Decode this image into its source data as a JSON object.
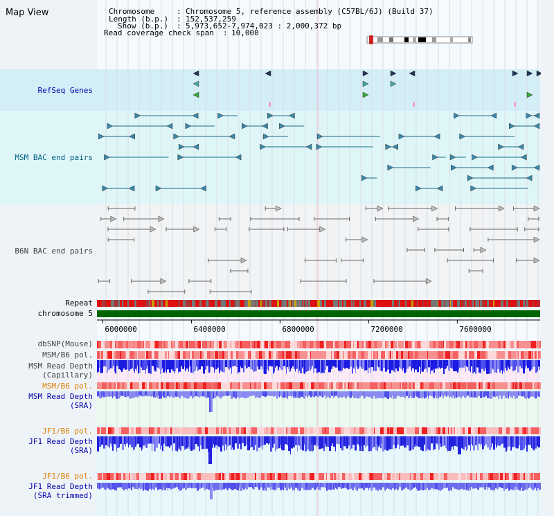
{
  "title": "Map View",
  "info": {
    "chromosome_key": "Chromosome",
    "chromosome_val": "Chromosome 5, reference assembly (C57BL/6J) (Build 37)",
    "length_key": "Length (b.p.)",
    "length_val": "152,537,259",
    "show_key": "Show (b.p.)",
    "show_val": "5,973,652-7,974,023 : 2,000,372 bp",
    "coverage_key": "Read coverage check span",
    "coverage_val": "10,000"
  },
  "axis_ticks": [
    "6000000",
    "6400000",
    "6800000",
    "7200000",
    "7600000"
  ],
  "tracks": {
    "refseq": "RefSeq Genes",
    "msm_bac": "MSM BAC end pairs",
    "b6n_bac": "B6N BAC end pairs",
    "repeat": "Repeat",
    "chromosome": "chromosome 5",
    "dbsnp": "dbSNP(Mouse)",
    "msm_b6_pol_1": "MSM/B6 pol.",
    "msm_read_depth_cap_1": "MSM Read Depth",
    "msm_read_depth_cap_2": "(Capillary)",
    "msm_b6_pol_2": "MSM/B6 pol.",
    "msm_read_depth_sra_1": "MSM Read Depth",
    "msm_read_depth_sra_2": "(SRA)",
    "jf1_b6_pol_1": "JF1/B6 pol.",
    "jf1_read_depth_sra_1": "JF1 Read Depth",
    "jf1_read_depth_sra_2": "(SRA)",
    "jf1_b6_pol_2": "JF1/B6 pol.",
    "jf1_read_depth_trim_1": "JF1 Read Depth",
    "jf1_read_depth_trim_2": "(SRA trimmed)"
  },
  "colors": {
    "refseq_label": "#0000aa",
    "msm_label": "#006080",
    "b6n_label": "#404040",
    "pol_orange": "#e08000",
    "depth_blue": "#0000aa",
    "chromosome_bar": "#006400",
    "depth_fill": "#1010e0"
  }
}
